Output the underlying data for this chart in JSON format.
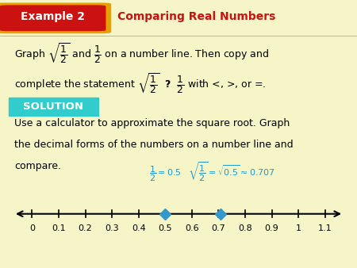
{
  "bg_color": "#f5f5c8",
  "header_bg_color": "#f5f5c8",
  "body_bg": "#ffffff",
  "example_btn_red": "#cc1111",
  "example_btn_border": "#e8a000",
  "header_title": "Example 2",
  "header_subtitle": "Comparing Real Numbers",
  "header_subtitle_color": "#cc1111",
  "solution_bg": "#33cccc",
  "solution_text_color": "#ffffff",
  "solution_label": "SOLUTION",
  "label_color": "#2299cc",
  "point_color": "#3399cc",
  "point1": 0.5,
  "point2": 0.707,
  "tick_values": [
    0.0,
    0.1,
    0.2,
    0.3,
    0.4,
    0.5,
    0.6,
    0.7,
    0.8,
    0.9,
    1.0,
    1.1
  ],
  "tick_labels": [
    "0",
    "0.1",
    "0.2",
    "0.3",
    "0.4",
    "0.5",
    "0.6",
    "0.7",
    "0.8",
    "0.9",
    "1",
    "1.1"
  ],
  "axis_xlim": [
    -0.08,
    1.18
  ],
  "fontsize_body": 9,
  "fontsize_header": 10,
  "fontsize_tick": 8,
  "fontsize_label": 8
}
